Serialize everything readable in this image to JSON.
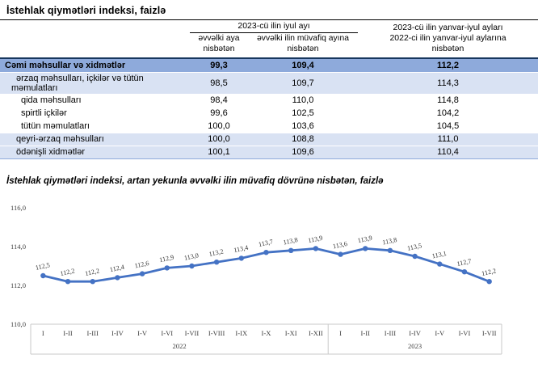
{
  "page": {
    "title": "İstehlak qiymətləri indeksi, faizlə"
  },
  "table": {
    "header": {
      "group1": "2023-cü ilin iyul ayı",
      "sub_col_1": "əvvəlki aya nisbətən",
      "sub_col_2": "əvvəlki ilin müvafiq ayına nisbətən",
      "right_line1": "2023-cü ilin yanvar-iyul ayları",
      "right_line2": "2022-ci ilin yanvar-iyul aylarına",
      "right_line3": "nisbətən"
    },
    "rows": [
      {
        "label": "Cəmi məhsullar və xidmətlər",
        "v1": "99,3",
        "v2": "109,4",
        "v3": "112,2",
        "style": "total",
        "indent": 0
      },
      {
        "label": "ərzaq məhsulları, içkilər və tütün məmulatları",
        "v1": "98,5",
        "v2": "109,7",
        "v3": "114,3",
        "style": "band",
        "indent": 1
      },
      {
        "label": "qida məhsulları",
        "v1": "98,4",
        "v2": "110,0",
        "v3": "114,8",
        "style": "plain",
        "indent": 2
      },
      {
        "label": "spirtli içkilər",
        "v1": "99,6",
        "v2": "102,5",
        "v3": "104,2",
        "style": "plain",
        "indent": 2
      },
      {
        "label": "tütün məmulatları",
        "v1": "100,0",
        "v2": "103,6",
        "v3": "104,5",
        "style": "plain",
        "indent": 2
      },
      {
        "label": "qeyri-ərzaq məhsulları",
        "v1": "100,0",
        "v2": "108,8",
        "v3": "111,0",
        "style": "band",
        "indent": 1
      },
      {
        "label": "ödənişli xidmətlər",
        "v1": "100,1",
        "v2": "109,6",
        "v3": "110,4",
        "style": "band",
        "indent": 1
      }
    ]
  },
  "chart": {
    "title": "İstehlak qiymətləri indeksi, artan yekunla əvvəlki ilin müvafiq dövrünə nisbətən, faizlə"
  },
  "chart_data": {
    "type": "line",
    "x": [
      "I",
      "I-II",
      "I-III",
      "I-IV",
      "I-V",
      "I-VI",
      "I-VII",
      "I-VIII",
      "I-IX",
      "I-X",
      "I-XI",
      "I-XII",
      "I",
      "I-II",
      "I-III",
      "I-IV",
      "I-V",
      "I-VI",
      "I-VII"
    ],
    "year_groups": [
      {
        "label": "2022",
        "count": 12
      },
      {
        "label": "2023",
        "count": 7
      }
    ],
    "values": [
      112.5,
      112.2,
      112.2,
      112.4,
      112.6,
      112.9,
      113.0,
      113.2,
      113.4,
      113.7,
      113.8,
      113.9,
      113.6,
      113.9,
      113.8,
      113.5,
      113.1,
      112.7,
      112.2
    ],
    "labels": [
      "112,5",
      "112,2",
      "112,2",
      "112,4",
      "112,6",
      "112,9",
      "113,0",
      "113,2",
      "113,4",
      "113,7",
      "113,8",
      "113,9",
      "113,6",
      "113,9",
      "113,8",
      "113,5",
      "113,1",
      "112,7",
      "112,2"
    ],
    "ylim": [
      110.0,
      116.0
    ],
    "yticks": [
      {
        "label": "116,0",
        "value": 116.0
      },
      {
        "label": "114,0",
        "value": 114.0
      },
      {
        "label": "112,0",
        "value": 112.0
      },
      {
        "label": "110,0",
        "value": 110.0
      }
    ],
    "line_color": "#4472C4",
    "grid": false,
    "legend": "none"
  },
  "colors": {
    "total_row_bg": "#8EAADB",
    "band_row_bg": "#D9E2F3",
    "table_border_dark": "#17375E",
    "table_border_light": "#8EAADB",
    "chart_line": "#4472C4",
    "axis_text": "#404040"
  }
}
